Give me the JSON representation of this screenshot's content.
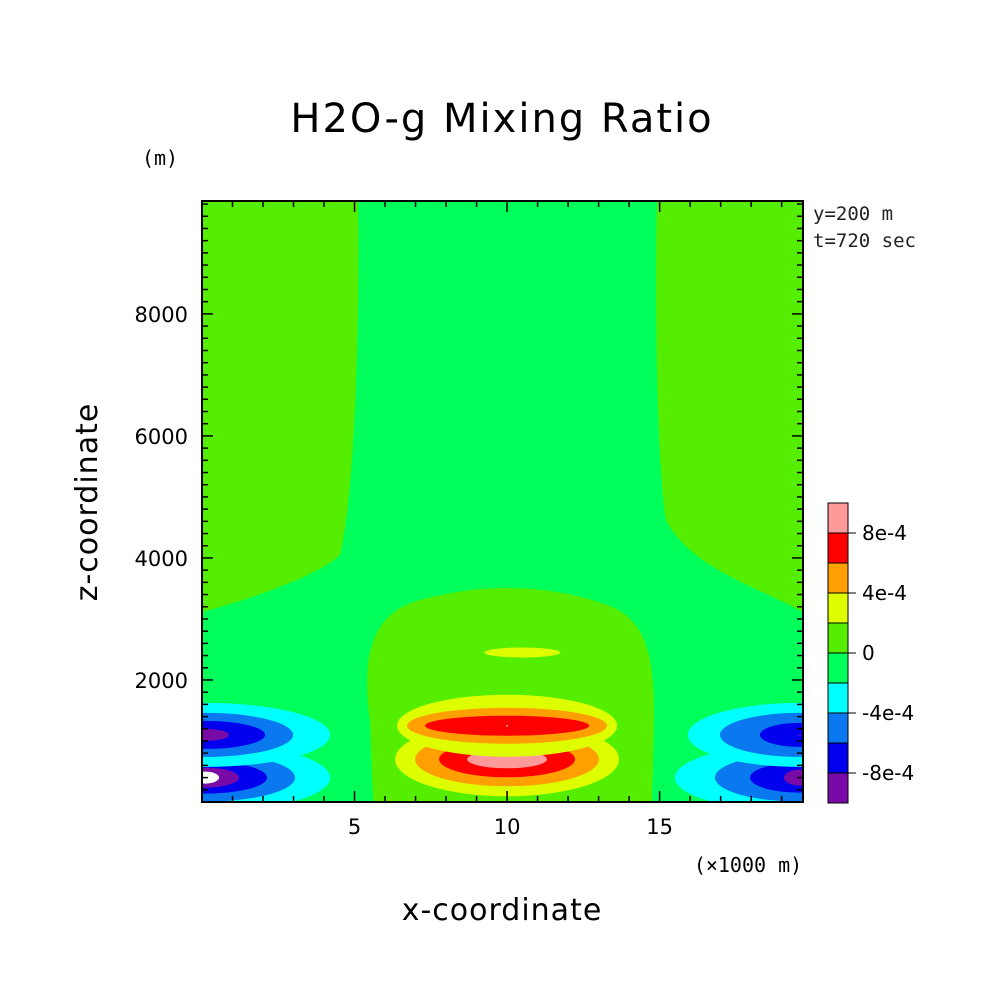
{
  "chart_data": {
    "type": "heatmap",
    "title": "H2O-g Mixing Ratio",
    "xlabel": "x-coordinate",
    "ylabel": "z-coordinate",
    "x_unit": "(×1000 m)",
    "y_unit": "(m)",
    "annotations": [
      "y=200 m",
      "t=720 sec"
    ],
    "xlim": [
      0,
      19.7
    ],
    "ylim": [
      0,
      9850
    ],
    "x_ticks": [
      5,
      10,
      15
    ],
    "x_tick_labels": [
      "5",
      "10",
      "15"
    ],
    "y_ticks": [
      2000,
      4000,
      6000,
      8000
    ],
    "y_tick_labels": [
      "2000",
      "4000",
      "6000",
      "8000"
    ],
    "colorbar": {
      "levels": [
        -0.0012,
        -0.001,
        -0.0008,
        -0.0006,
        -0.0004,
        -0.0002,
        0,
        0.0002,
        0.0004,
        0.0006,
        0.0008,
        0.001
      ],
      "tick_labels": [
        "8e-4",
        "4e-4",
        "0",
        "-4e-4",
        "-8e-4"
      ],
      "colors": [
        "#ffffff",
        "#7a0aa8",
        "#0000ee",
        "#0a78ee",
        "#00ffff",
        "#00ff5a",
        "#55ee00",
        "#ddff00",
        "#ffa000",
        "#ff0000",
        "#ff9a9a"
      ],
      "legend_placement": "right"
    },
    "features": [
      {
        "x": 10.0,
        "z": 700,
        "peak": 0.001
      },
      {
        "x": 10.0,
        "z": 1250,
        "peak": 0.0009
      },
      {
        "x": 10.5,
        "z": 2450,
        "peak": 0.0003
      },
      {
        "x": 0.1,
        "z": 400,
        "peak": -0.0012
      },
      {
        "x": 0.1,
        "z": 1100,
        "peak": -0.001
      },
      {
        "x": 19.6,
        "z": 400,
        "peak": -0.001
      },
      {
        "x": 19.6,
        "z": 1100,
        "peak": -0.0009
      }
    ],
    "grid": false
  }
}
